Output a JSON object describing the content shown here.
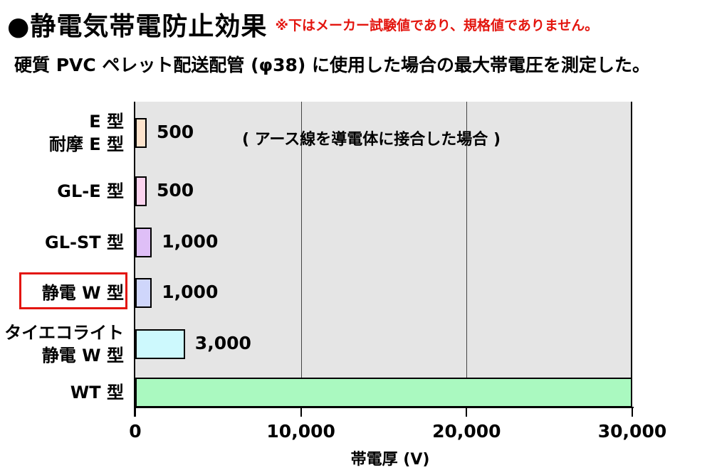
{
  "header": {
    "title": "●静電気帯電防止効果",
    "note": "※下はメーカー試験値であり、規格値でありません。",
    "subtitle": "硬質 PVC ペレット配送配管 (φ38) に使用した場合の最大帯電圧を測定した。"
  },
  "chart_data": {
    "type": "bar",
    "orientation": "horizontal",
    "categories": [
      [
        "E 型",
        "耐摩 E 型"
      ],
      [
        "GL-E 型"
      ],
      [
        "GL-ST 型"
      ],
      [
        "静電 W 型"
      ],
      [
        "タイエコライト",
        "静電 W 型"
      ],
      [
        "WT 型"
      ]
    ],
    "values": [
      500,
      500,
      1000,
      1000,
      3000,
      30000
    ],
    "value_labels": [
      "500",
      "500",
      "1,000",
      "1,000",
      "3,000",
      ""
    ],
    "bar_colors": [
      "#fde3cc",
      "#fbd3ee",
      "#dfbff7",
      "#cfd6fb",
      "#cdf9fd",
      "#aaf9c0"
    ],
    "highlighted_category": "静電 W 型",
    "highlight_color": "#e3150e",
    "annotation": "( アース線を導電体に接合した場合 )",
    "xlabel": "帯電厚 (V)",
    "xlim": [
      0,
      30000
    ],
    "xticks": [
      0,
      10000,
      20000,
      30000
    ],
    "xtick_labels": [
      "0",
      "10,000",
      "20,000",
      "30,000"
    ],
    "grid": true,
    "plot_background": "#e5e5e5"
  }
}
